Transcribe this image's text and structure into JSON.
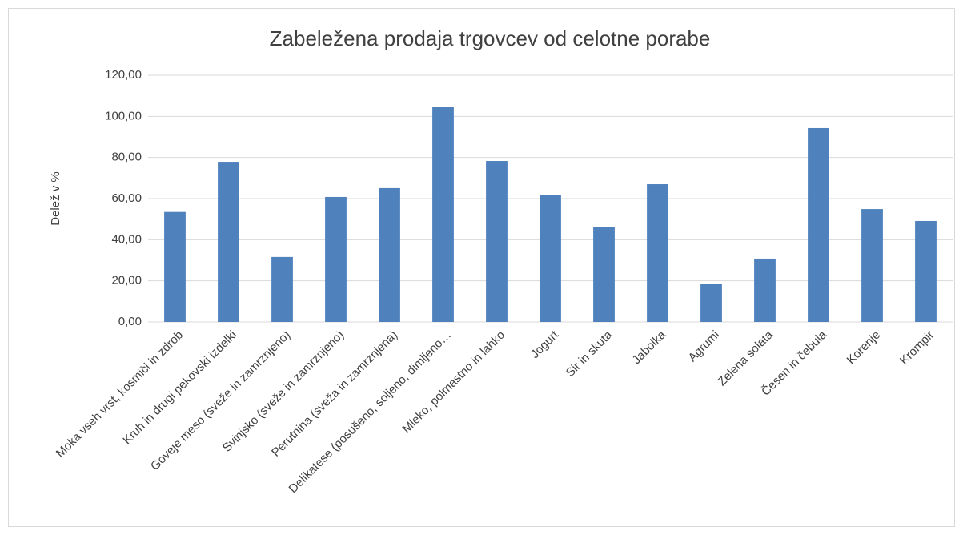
{
  "chart_data": {
    "type": "bar",
    "title": "Zabeležena prodaja trgovcev od celotne porabe",
    "ylabel": "Delež v %",
    "categories": [
      "Moka vseh vrst, kosmiči in zdrob",
      "Kruh in drugi pekovski izdelki",
      "Goveje meso (sveže in zamrznjeno)",
      "Svinjsko (sveže in zamrznjeno)",
      "Perutnina (sveža in zamrznjena)",
      "Delikatese (posušeno, soljeno, dimljeno…",
      "Mleko, polmastno in lahko",
      "Jogurt",
      "Sir in skuta",
      "Jabolka",
      "Agrumi",
      "Zelena solata",
      "Česen in čebula",
      "Korenje",
      "Krompir"
    ],
    "values": [
      53.5,
      77.9,
      31.6,
      60.8,
      65.1,
      104.8,
      78.3,
      61.6,
      46.0,
      67.0,
      18.7,
      30.8,
      94.3,
      54.9,
      49.1
    ],
    "color": "#4f81bd",
    "ylim": [
      0,
      120
    ],
    "yticks": [
      {
        "value": 0,
        "label": "0,00"
      },
      {
        "value": 20,
        "label": "20,00"
      },
      {
        "value": 40,
        "label": "40,00"
      },
      {
        "value": 60,
        "label": "60,00"
      },
      {
        "value": 80,
        "label": "80,00"
      },
      {
        "value": 100,
        "label": "100,00"
      },
      {
        "value": 120,
        "label": "120,00"
      }
    ],
    "grid": true
  }
}
